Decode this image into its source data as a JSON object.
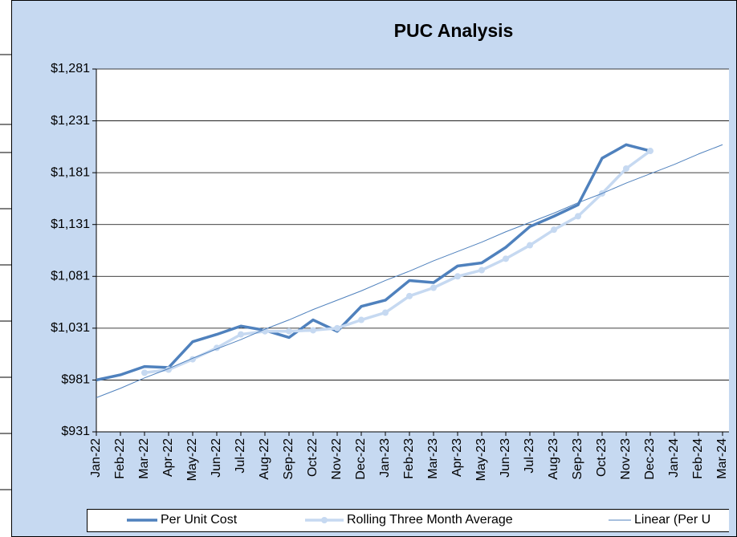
{
  "chart_data": {
    "type": "line",
    "title": "PUC Analysis",
    "categories": [
      "Jan-22",
      "Feb-22",
      "Mar-22",
      "Apr-22",
      "May-22",
      "Jun-22",
      "Jul-22",
      "Aug-22",
      "Sep-22",
      "Oct-22",
      "Nov-22",
      "Dec-22",
      "Jan-23",
      "Feb-23",
      "Mar-23",
      "Apr-23",
      "May-23",
      "Jun-23",
      "Jul-23",
      "Aug-23",
      "Sep-23",
      "Oct-23",
      "Nov-23",
      "Dec-23",
      "Jan-24",
      "Feb-24",
      "Mar-24"
    ],
    "series": [
      {
        "name": "Per Unit Cost",
        "color": "#4f81bd",
        "width": 3.5,
        "markers": false,
        "values": [
          981,
          986,
          994,
          993,
          1018,
          1025,
          1033,
          1029,
          1022,
          1039,
          1028,
          1052,
          1058,
          1077,
          1075,
          1091,
          1094,
          1109,
          1129,
          1139,
          1150,
          1195,
          1208,
          1202,
          null,
          null,
          null
        ]
      },
      {
        "name": "Rolling Three Month Average",
        "color": "#c6d9f1",
        "width": 3.5,
        "markers": true,
        "values": [
          null,
          null,
          988,
          991,
          1001,
          1012,
          1025,
          1028,
          1028,
          1029,
          1031,
          1039,
          1046,
          1062,
          1070,
          1081,
          1087,
          1098,
          1111,
          1126,
          1139,
          1161,
          1185,
          1202,
          null,
          null,
          null
        ]
      },
      {
        "name": "Linear (Per U",
        "color": "#4f81bd",
        "width": 1,
        "markers": false,
        "values": [
          964,
          973,
          983,
          992,
          1002,
          1011,
          1020,
          1030,
          1039,
          1049,
          1058,
          1067,
          1077,
          1086,
          1096,
          1105,
          1114,
          1124,
          1133,
          1142,
          1152,
          1161,
          1171,
          1180,
          1189,
          1199,
          1208
        ]
      }
    ],
    "ylim": [
      931,
      1281
    ],
    "yticks": [
      {
        "value": 931,
        "label": "$931"
      },
      {
        "value": 981,
        "label": "$981"
      },
      {
        "value": 1031,
        "label": "$1,031"
      },
      {
        "value": 1081,
        "label": "$1,081"
      },
      {
        "value": 1131,
        "label": "$1,131"
      },
      {
        "value": 1181,
        "label": "$1,181"
      },
      {
        "value": 1231,
        "label": "$1,231"
      },
      {
        "value": 1281,
        "label": "$1,281"
      }
    ],
    "grid": true,
    "legend": "bottom"
  }
}
